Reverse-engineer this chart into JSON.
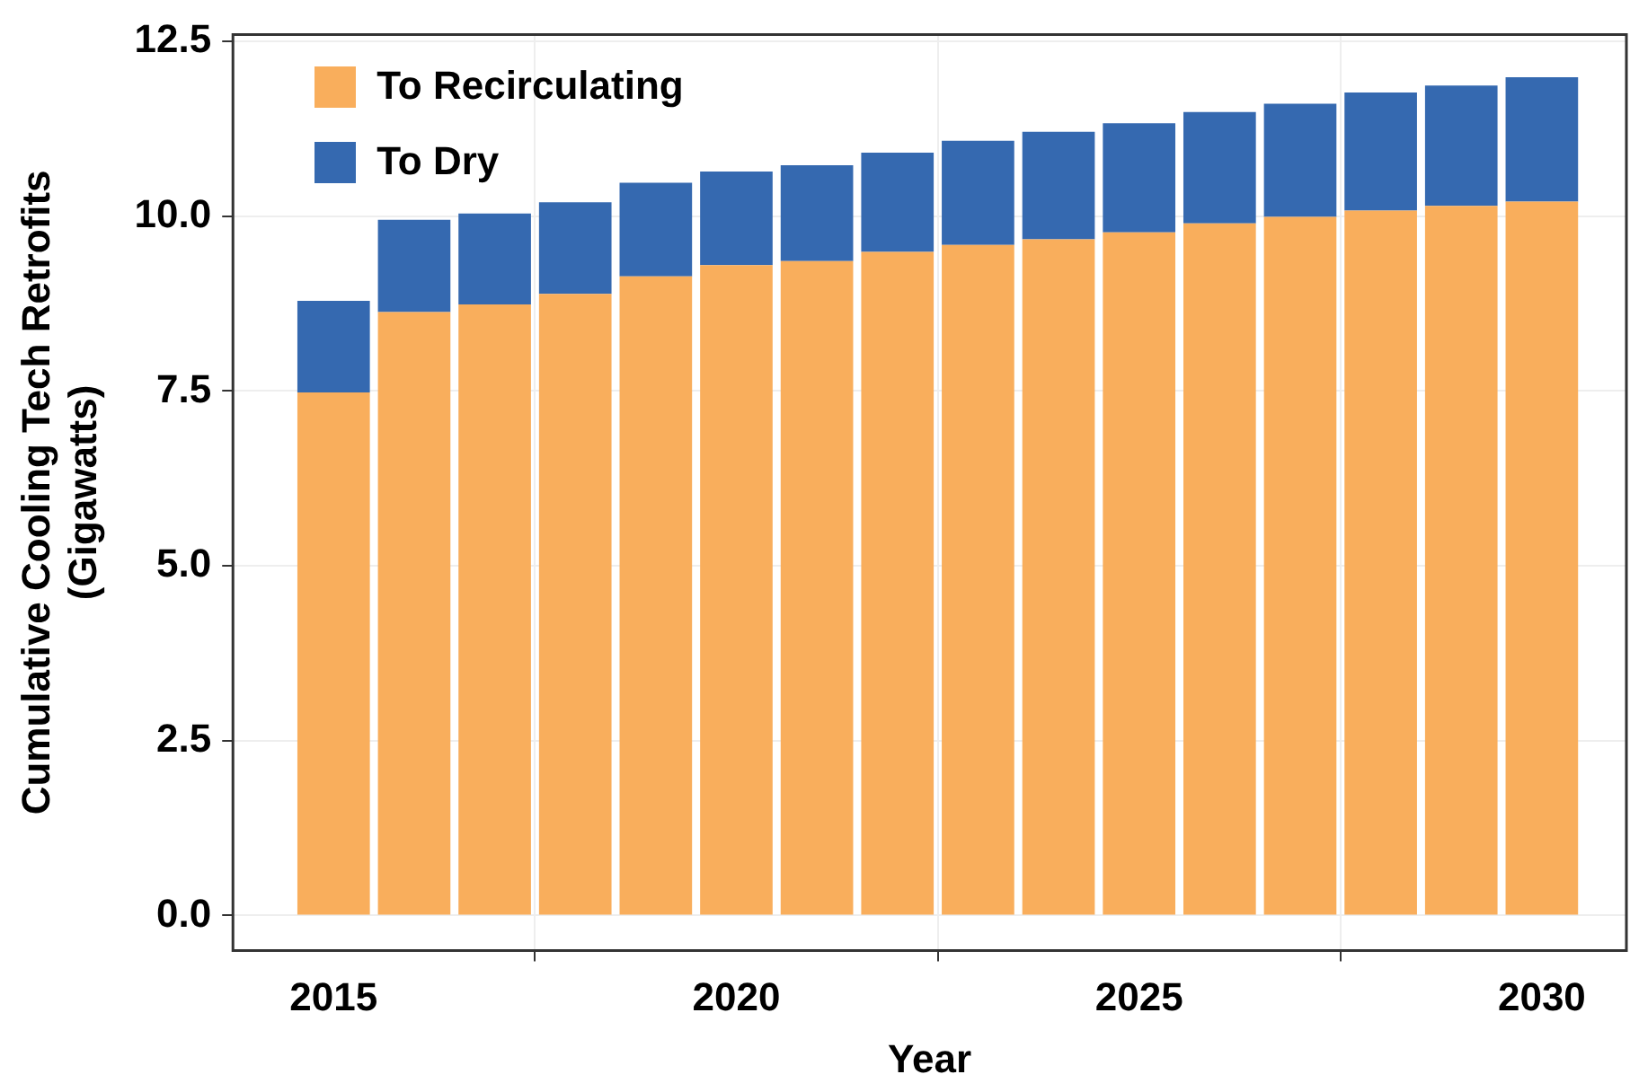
{
  "chart_data": {
    "type": "bar",
    "stacked": true,
    "xlabel": "Year",
    "ylabel": "Cumulative Cooling Tech Retrofits\n(Gigawatts)",
    "x": [
      2015,
      2016,
      2017,
      2018,
      2019,
      2020,
      2021,
      2022,
      2023,
      2024,
      2025,
      2026,
      2027,
      2028,
      2029,
      2030
    ],
    "series": [
      {
        "name": "To Recirculating",
        "color": "#f9ae5c",
        "values": [
          7.48,
          8.63,
          8.74,
          8.89,
          9.14,
          9.3,
          9.36,
          9.49,
          9.59,
          9.67,
          9.77,
          9.9,
          9.99,
          10.08,
          10.15,
          10.21
        ]
      },
      {
        "name": "To Dry",
        "color": "#3569b0",
        "values": [
          1.31,
          1.32,
          1.3,
          1.31,
          1.34,
          1.34,
          1.37,
          1.42,
          1.49,
          1.54,
          1.56,
          1.59,
          1.62,
          1.69,
          1.72,
          1.78
        ]
      }
    ],
    "xlim": [
      2013.75,
      2031.05
    ],
    "xticks": [
      2015,
      2020,
      2025,
      2030
    ],
    "ylim": [
      -0.5,
      12.6
    ],
    "yticks": [
      {
        "value": 0,
        "label": "0.0"
      },
      {
        "value": 2.5,
        "label": "2.5"
      },
      {
        "value": 5,
        "label": "5.0"
      },
      {
        "value": 7.5,
        "label": "7.5"
      },
      {
        "value": 10,
        "label": "10.0"
      },
      {
        "value": 12.5,
        "label": "12.5"
      }
    ],
    "grid": true,
    "legend": "top left"
  }
}
